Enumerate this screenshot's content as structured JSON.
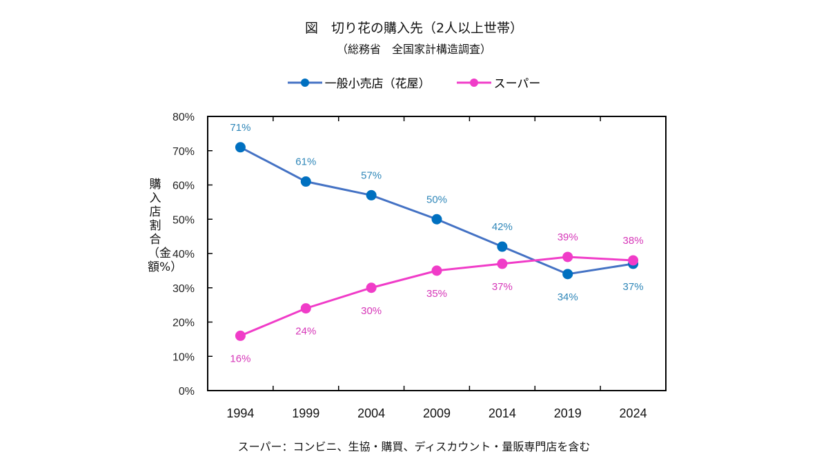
{
  "title": "図　切り花の購入先（2人以上世帯）",
  "subtitle": "（総務省　全国家計構造調査）",
  "note": "スーパー：コンビニ、生協・購買、ディスカウント・量販専門店を含む",
  "chart_data": {
    "type": "line",
    "ylabel": "購入店割合（金額%）",
    "categories": [
      "1994",
      "1999",
      "2004",
      "2009",
      "2014",
      "2019",
      "2024"
    ],
    "ylim": [
      0,
      80
    ],
    "yticks": [
      "0%",
      "10%",
      "20%",
      "30%",
      "40%",
      "50%",
      "60%",
      "70%",
      "80%"
    ],
    "legend_position": "top",
    "grid": false,
    "series": [
      {
        "name": "一般小売店（花屋）",
        "values": [
          71,
          61,
          57,
          50,
          42,
          34,
          37
        ],
        "labels": [
          "71%",
          "61%",
          "57%",
          "50%",
          "42%",
          "34%",
          "37%"
        ],
        "line_color": "#4472C4",
        "marker_color": "#0070C0",
        "label_color": "#2E86B8"
      },
      {
        "name": "スーパー",
        "values": [
          16,
          24,
          30,
          35,
          37,
          39,
          38
        ],
        "labels": [
          "16%",
          "24%",
          "30%",
          "35%",
          "37%",
          "39%",
          "38%"
        ],
        "line_color": "#F03CC8",
        "marker_color": "#F03CC8",
        "label_color": "#D636B8"
      }
    ]
  }
}
